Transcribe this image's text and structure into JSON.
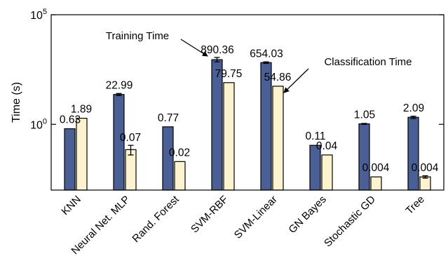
{
  "chart_data": {
    "type": "bar",
    "title": "",
    "xlabel": "",
    "ylabel": "Time (s)",
    "yscale": "log",
    "ylim": [
      0.001,
      100000
    ],
    "grid": false,
    "yticks": [
      {
        "value": 1,
        "base": "10",
        "exp": "0"
      },
      {
        "value": 100000,
        "base": "10",
        "exp": "5"
      }
    ],
    "categories": [
      "KNN",
      "Neural Net. MLP",
      "Rand. Forest",
      "SVM-RBF",
      "SVM-Linear",
      "GN Bayes",
      "Stochastic GD",
      "Tree"
    ],
    "series": [
      {
        "color": "#4a5f96",
        "values": [
          0.63,
          22.99,
          0.77,
          890.36,
          654.03,
          0.11,
          1.05,
          2.09
        ],
        "labels": [
          "0.63",
          "22.99",
          "0.77",
          "890.36",
          "654.03",
          "0.11",
          "1.05",
          "2.09"
        ],
        "errors": [
          null,
          [
            20.5,
            25.5
          ],
          null,
          [
            700,
            1130
          ],
          [
            600,
            710
          ],
          null,
          [
            1.0,
            1.1
          ],
          [
            1.85,
            2.35
          ]
        ]
      },
      {
        "color": "#fdf3d1",
        "values": [
          1.89,
          0.07,
          0.02,
          79.75,
          54.86,
          0.04,
          0.004,
          0.004
        ],
        "labels": [
          "1.89",
          "0.07",
          "0.02",
          "79.75",
          "54.86",
          "0.04",
          "0.004",
          "0.004"
        ],
        "errors": [
          null,
          [
            0.04,
            0.11
          ],
          null,
          null,
          null,
          null,
          null,
          [
            0.0035,
            0.0045
          ]
        ]
      }
    ],
    "annotations": [
      {
        "text": "Training Time",
        "target_series": 0,
        "target_category": 3
      },
      {
        "text": "Classification Time",
        "target_series": 1,
        "target_category": 4
      }
    ]
  }
}
